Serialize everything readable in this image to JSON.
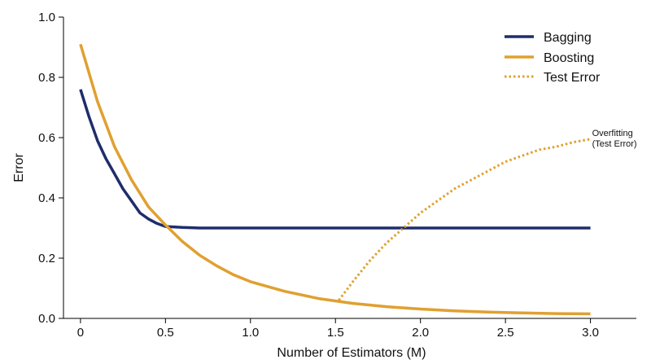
{
  "chart_data": {
    "type": "line",
    "title": "",
    "xlabel": "Number of Estimators (M)",
    "ylabel": "Error",
    "xlim": [
      -0.1,
      3.27
    ],
    "ylim": [
      0,
      1.0
    ],
    "xticks": [
      "0",
      "0.5",
      "1.0",
      "1.5",
      "2.0",
      "2.5",
      "3.0"
    ],
    "xtick_values": [
      0,
      0.5,
      1.0,
      1.5,
      2.0,
      2.5,
      3.0
    ],
    "yticks": [
      "0.0",
      "0.2",
      "0.4",
      "0.6",
      "0.8",
      "1.0"
    ],
    "ytick_values": [
      0,
      0.2,
      0.4,
      0.6,
      0.8,
      1.0
    ],
    "grid": false,
    "legend_position": "top-right",
    "series": [
      {
        "name": "Bagging",
        "color": "#1f2d6b",
        "style": "solid",
        "x": [
          0,
          0.05,
          0.1,
          0.15,
          0.2,
          0.25,
          0.3,
          0.35,
          0.4,
          0.45,
          0.5,
          0.6,
          0.7,
          0.8,
          1.0,
          1.5,
          2.0,
          2.5,
          3.0
        ],
        "y": [
          0.76,
          0.67,
          0.59,
          0.53,
          0.48,
          0.43,
          0.39,
          0.35,
          0.33,
          0.315,
          0.305,
          0.302,
          0.3,
          0.3,
          0.3,
          0.3,
          0.3,
          0.3,
          0.3
        ]
      },
      {
        "name": "Boosting",
        "color": "#e0a030",
        "style": "solid",
        "x": [
          0,
          0.1,
          0.2,
          0.3,
          0.4,
          0.5,
          0.6,
          0.7,
          0.8,
          0.9,
          1.0,
          1.2,
          1.4,
          1.6,
          1.8,
          2.0,
          2.2,
          2.4,
          2.6,
          2.8,
          3.0
        ],
        "y": [
          0.91,
          0.72,
          0.57,
          0.46,
          0.37,
          0.31,
          0.255,
          0.21,
          0.175,
          0.145,
          0.122,
          0.09,
          0.066,
          0.05,
          0.039,
          0.031,
          0.025,
          0.021,
          0.018,
          0.016,
          0.015
        ]
      },
      {
        "name": "Test Error",
        "color": "#e0a030",
        "style": "dotted",
        "x": [
          1.52,
          1.6,
          1.7,
          1.8,
          1.9,
          2.0,
          2.1,
          2.2,
          2.3,
          2.4,
          2.5,
          2.6,
          2.7,
          2.8,
          2.9,
          3.0
        ],
        "y": [
          0.06,
          0.12,
          0.19,
          0.25,
          0.3,
          0.35,
          0.39,
          0.43,
          0.46,
          0.49,
          0.52,
          0.54,
          0.56,
          0.57,
          0.585,
          0.595
        ]
      }
    ],
    "annotation": {
      "line1": "Overfitting",
      "line2": "(Test Error)",
      "x": 3.0,
      "y": 0.595
    }
  }
}
